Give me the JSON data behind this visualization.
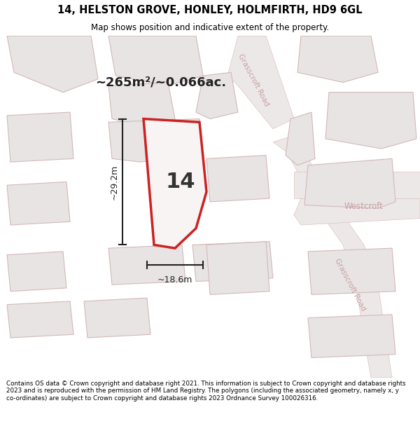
{
  "title": "14, HELSTON GROVE, HONLEY, HOLMFIRTH, HD9 6GL",
  "subtitle": "Map shows position and indicative extent of the property.",
  "area_text": "~265m²/~0.066ac.",
  "number_label": "14",
  "dim_width": "~18.6m",
  "dim_height": "~29.2m",
  "footer": "Contains OS data © Crown copyright and database right 2021. This information is subject to Crown copyright and database rights 2023 and is reproduced with the permission of HM Land Registry. The polygons (including the associated geometry, namely x, y co-ordinates) are subject to Crown copyright and database rights 2023 Ordnance Survey 100026316.",
  "title_bg": "#ffffff",
  "map_bg": "#f0eeee",
  "building_fill": "#e8e4e4",
  "building_edge": "#d4b8b8",
  "road_fill": "#ede8e8",
  "road_edge": "#e0c0c0",
  "plot_fill": "#f8f4f4",
  "plot_edge": "#cc2222",
  "label_color": "#c8a0a0",
  "dim_color": "#222222",
  "area_color": "#222222",
  "num_color": "#333333",
  "road_label1": "Grasscroft Road",
  "road_label2": "Grasscroft Road",
  "road_label3": "Westcroft"
}
